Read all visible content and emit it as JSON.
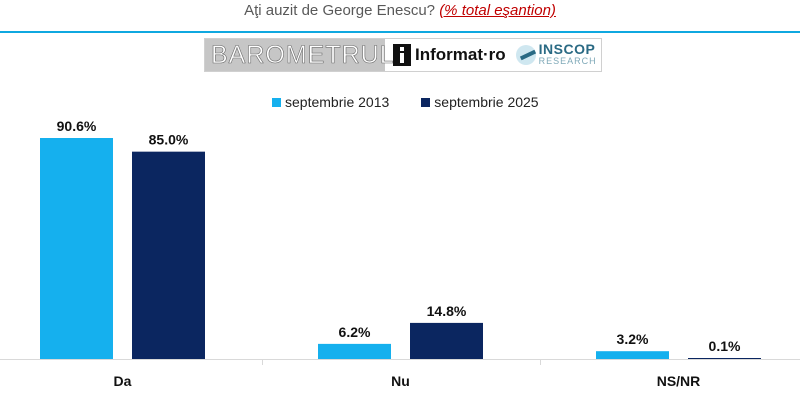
{
  "header": {
    "title": "Aţi auzit de George Enescu?",
    "subtitle": "(% total eşantion)"
  },
  "banner": {
    "barometer": "BAROMETRUL",
    "informat": "Informat·ro",
    "inscop": "INSCOP",
    "inscop_sub": "RESEARCH"
  },
  "colors": {
    "series1": "#15b0ee",
    "series2": "#0b2660",
    "rule": "#0fa8e0",
    "axis": "#d9d9d9"
  },
  "chart_data": {
    "type": "bar",
    "categories": [
      "Da",
      "Nu",
      "NS/NR"
    ],
    "series": [
      {
        "name": "septembrie 2013",
        "values": [
          90.6,
          6.2,
          3.2
        ],
        "labels": [
          "90.6%",
          "6.2%",
          "3.2%"
        ]
      },
      {
        "name": "septembrie 2025",
        "values": [
          85.0,
          14.8,
          0.1
        ],
        "labels": [
          "85.0%",
          "14.8%",
          "0.1%"
        ]
      }
    ],
    "ylim": [
      0,
      100
    ],
    "grid": false,
    "legend_position": "top"
  }
}
